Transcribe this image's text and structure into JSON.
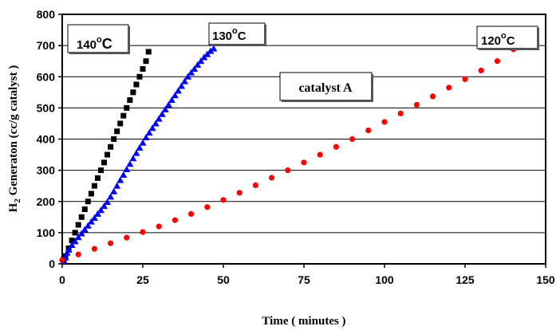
{
  "chart_data": {
    "type": "scatter",
    "title": "",
    "xlabel": "Time  ( minutes )",
    "ylabel": {
      "prefix": "H",
      "subscript": "2",
      "rest": " Generaton  (cc/g catalyst )"
    },
    "xlim": [
      0,
      150
    ],
    "ylim": [
      0,
      800
    ],
    "xticks": [
      0,
      25,
      50,
      75,
      100,
      125,
      150
    ],
    "yticks": [
      0,
      100,
      200,
      300,
      400,
      500,
      600,
      700,
      800
    ],
    "grid": "horizontal",
    "legend": "none",
    "annotation": "catalyst A",
    "series": [
      {
        "name": "140 °C",
        "label_main": "140",
        "label_sup": "o",
        "label_unit": "C",
        "color": "#000000",
        "marker": "square",
        "x": [
          0.5,
          1,
          2,
          3,
          4,
          5,
          6,
          7,
          8,
          9,
          10,
          11,
          12,
          13,
          14,
          15,
          16,
          17,
          18,
          19,
          20,
          21,
          22,
          23,
          24,
          25,
          26,
          26.8
        ],
        "y": [
          15,
          25,
          50,
          75,
          100,
          125,
          150,
          175,
          200,
          225,
          250,
          275,
          300,
          325,
          350,
          375,
          400,
          425,
          450,
          475,
          500,
          525,
          550,
          575,
          600,
          625,
          650,
          680
        ]
      },
      {
        "name": "130 °C",
        "label_main": "130",
        "label_sup": "o",
        "label_unit": "C",
        "color": "#0000ff",
        "marker": "triangle",
        "x": [
          0.5,
          1,
          1.5,
          2,
          3,
          4,
          5,
          6,
          7,
          8,
          9,
          10,
          11,
          12,
          13,
          14,
          15,
          16,
          17,
          18,
          19,
          20,
          21,
          22,
          23,
          24,
          25,
          26,
          27,
          28,
          29,
          30,
          31,
          32,
          33,
          34,
          35,
          36,
          37,
          38,
          39,
          40,
          41,
          42,
          43,
          44,
          45,
          46,
          47
        ],
        "y": [
          10,
          20,
          35,
          45,
          60,
          72,
          85,
          97,
          110,
          122,
          135,
          147,
          160,
          172,
          185,
          198,
          215,
          232,
          250,
          268,
          285,
          303,
          320,
          338,
          355,
          372,
          388,
          405,
          420,
          435,
          450,
          465,
          480,
          495,
          510,
          525,
          540,
          555,
          570,
          585,
          600,
          613,
          625,
          638,
          650,
          662,
          672,
          682,
          690
        ]
      },
      {
        "name": "120 °C",
        "label_main": "120",
        "label_sup": "o",
        "label_unit": "C",
        "color": "#ff0000",
        "marker": "circle",
        "x": [
          0,
          5,
          10,
          15,
          20,
          25,
          30,
          35,
          40,
          45,
          50,
          55,
          60,
          65,
          70,
          75,
          80,
          85,
          90,
          95,
          100,
          105,
          110,
          115,
          120,
          125,
          130,
          135,
          140
        ],
        "y": [
          12,
          30,
          48,
          66,
          84,
          102,
          120,
          140,
          160,
          182,
          205,
          228,
          252,
          276,
          300,
          325,
          350,
          375,
          400,
          428,
          455,
          482,
          510,
          537,
          565,
          592,
          620,
          650,
          688
        ]
      }
    ]
  }
}
